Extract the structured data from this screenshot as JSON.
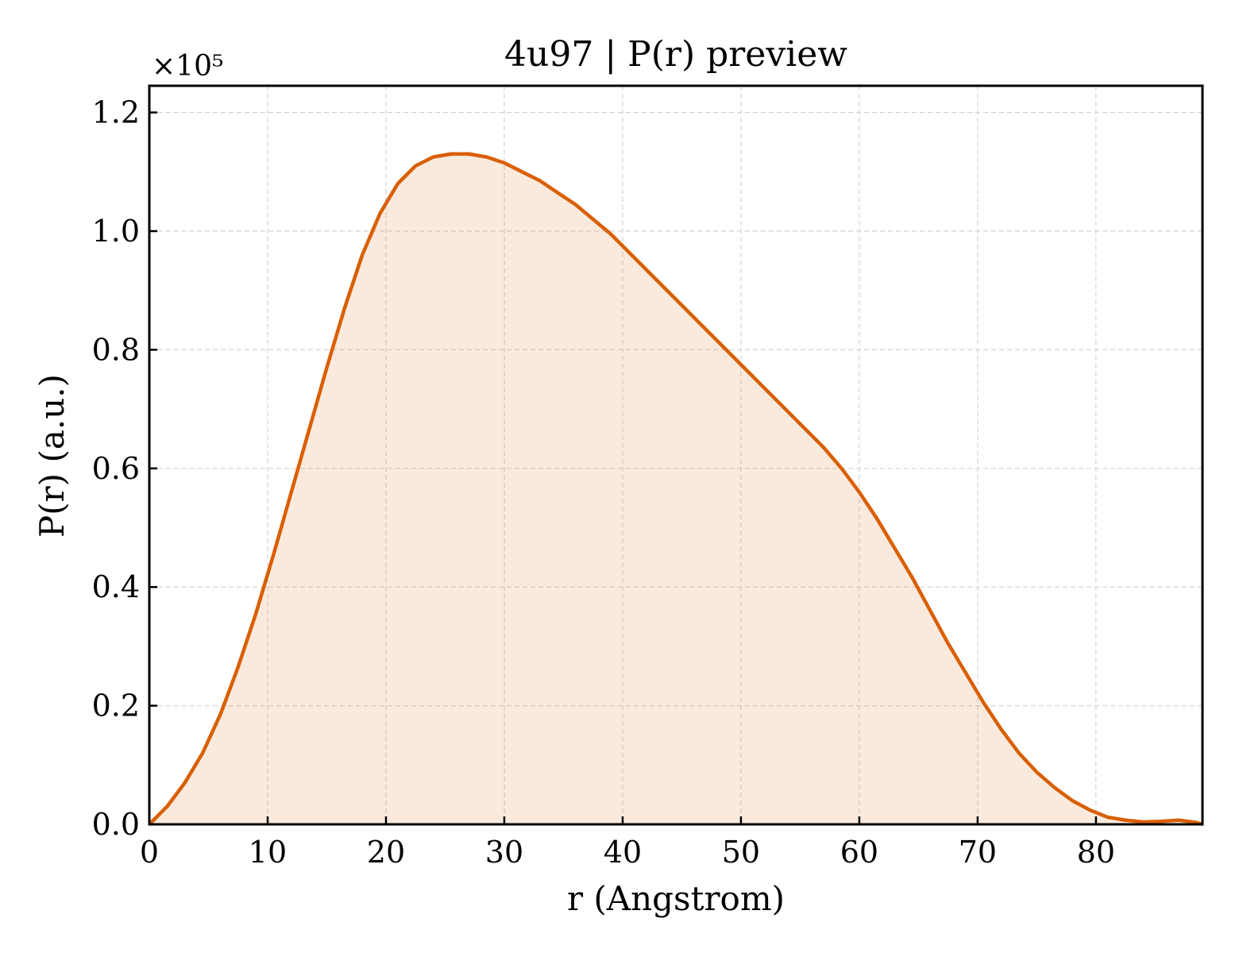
{
  "chart_data": {
    "type": "area",
    "title": "4u97 | P(r) preview",
    "xlabel": "r (Angstrom)",
    "ylabel": "P(r) (a.u.)",
    "y_offset_text": "×10⁵",
    "xlim": [
      0,
      89
    ],
    "ylim": [
      0,
      1.245
    ],
    "x_ticks": [
      0,
      10,
      20,
      30,
      40,
      50,
      60,
      70,
      80
    ],
    "x_tick_labels": [
      "0",
      "10",
      "20",
      "30",
      "40",
      "50",
      "60",
      "70",
      "80"
    ],
    "y_ticks": [
      0,
      0.2,
      0.4,
      0.6,
      0.8,
      1.0,
      1.2
    ],
    "y_tick_labels": [
      "0.0",
      "0.2",
      "0.4",
      "0.6",
      "0.8",
      "1.0",
      "1.2"
    ],
    "grid": true,
    "colors": {
      "line": "#d95f02",
      "fill": "#d95f02",
      "fill_opacity": 0.13
    },
    "series": [
      {
        "x": [
          0,
          1.5,
          3,
          4.5,
          6,
          7.5,
          9,
          10.5,
          12,
          13.5,
          15,
          16.5,
          18,
          19.5,
          21,
          22.5,
          24,
          25.5,
          27,
          28.5,
          30,
          31.5,
          33,
          34.5,
          36,
          37.5,
          39,
          40.5,
          42,
          43.5,
          45,
          46.5,
          48,
          49.5,
          51,
          52.5,
          54,
          55.5,
          57,
          58.5,
          60,
          61.5,
          63,
          64.5,
          66,
          67.5,
          69,
          70.5,
          72,
          73.5,
          75,
          76.5,
          78,
          79.5,
          81,
          82.5,
          84,
          85.5,
          87,
          88.5,
          89
        ],
        "values": [
          0,
          0.03,
          0.07,
          0.12,
          0.185,
          0.265,
          0.355,
          0.455,
          0.56,
          0.665,
          0.77,
          0.87,
          0.96,
          1.03,
          1.08,
          1.11,
          1.125,
          1.13,
          1.13,
          1.125,
          1.115,
          1.1,
          1.085,
          1.065,
          1.045,
          1.02,
          0.995,
          0.965,
          0.935,
          0.905,
          0.875,
          0.845,
          0.815,
          0.785,
          0.755,
          0.725,
          0.695,
          0.665,
          0.635,
          0.6,
          0.56,
          0.515,
          0.465,
          0.415,
          0.36,
          0.305,
          0.255,
          0.205,
          0.16,
          0.12,
          0.088,
          0.062,
          0.04,
          0.024,
          0.012,
          0.007,
          0.004,
          0.005,
          0.007,
          0.003,
          0.0
        ]
      }
    ]
  }
}
